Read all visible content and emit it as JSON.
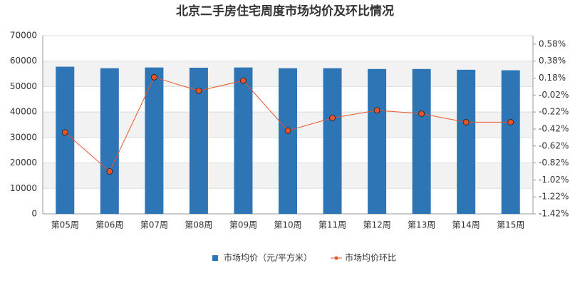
{
  "chart_data": {
    "type": "bar",
    "title": "北京二手房住宅周度市场均价及环比情况",
    "categories": [
      "第05周",
      "第06周",
      "第07周",
      "第08周",
      "第09周",
      "第10周",
      "第11周",
      "第12周",
      "第13周",
      "第14周",
      "第15周"
    ],
    "series": [
      {
        "name": "市场均价（元/平方米）",
        "type": "bar",
        "color": "#2e75b6",
        "values": [
          57800,
          57200,
          57500,
          57400,
          57500,
          57200,
          57200,
          56900,
          56900,
          56600,
          56400
        ]
      },
      {
        "name": "市场均价环比",
        "type": "line",
        "axis": "y2",
        "color": "#e8542a",
        "values": [
          -0.46,
          -0.92,
          0.19,
          0.03,
          0.15,
          -0.44,
          -0.29,
          -0.2,
          -0.24,
          -0.34,
          -0.34
        ]
      }
    ],
    "ylim": [
      0,
      70000
    ],
    "yticks": [
      0,
      10000,
      20000,
      30000,
      40000,
      50000,
      60000,
      70000
    ],
    "y2lim": [
      -1.42,
      0.68
    ],
    "y2ticks": [
      {
        "value": -1.42,
        "label": "-1.42%"
      },
      {
        "value": -1.22,
        "label": "-1.22%"
      },
      {
        "value": -1.02,
        "label": "-1.02%"
      },
      {
        "value": -0.82,
        "label": "-0.82%"
      },
      {
        "value": -0.62,
        "label": "-0.62%"
      },
      {
        "value": -0.42,
        "label": "-0.42%"
      },
      {
        "value": -0.22,
        "label": "-0.22%"
      },
      {
        "value": -0.02,
        "label": "-0.02%"
      },
      {
        "value": 0.18,
        "label": "0.18%"
      },
      {
        "value": 0.38,
        "label": "0.38%"
      },
      {
        "value": 0.58,
        "label": "0.58%"
      }
    ],
    "grid": true,
    "legend": "bottom"
  }
}
